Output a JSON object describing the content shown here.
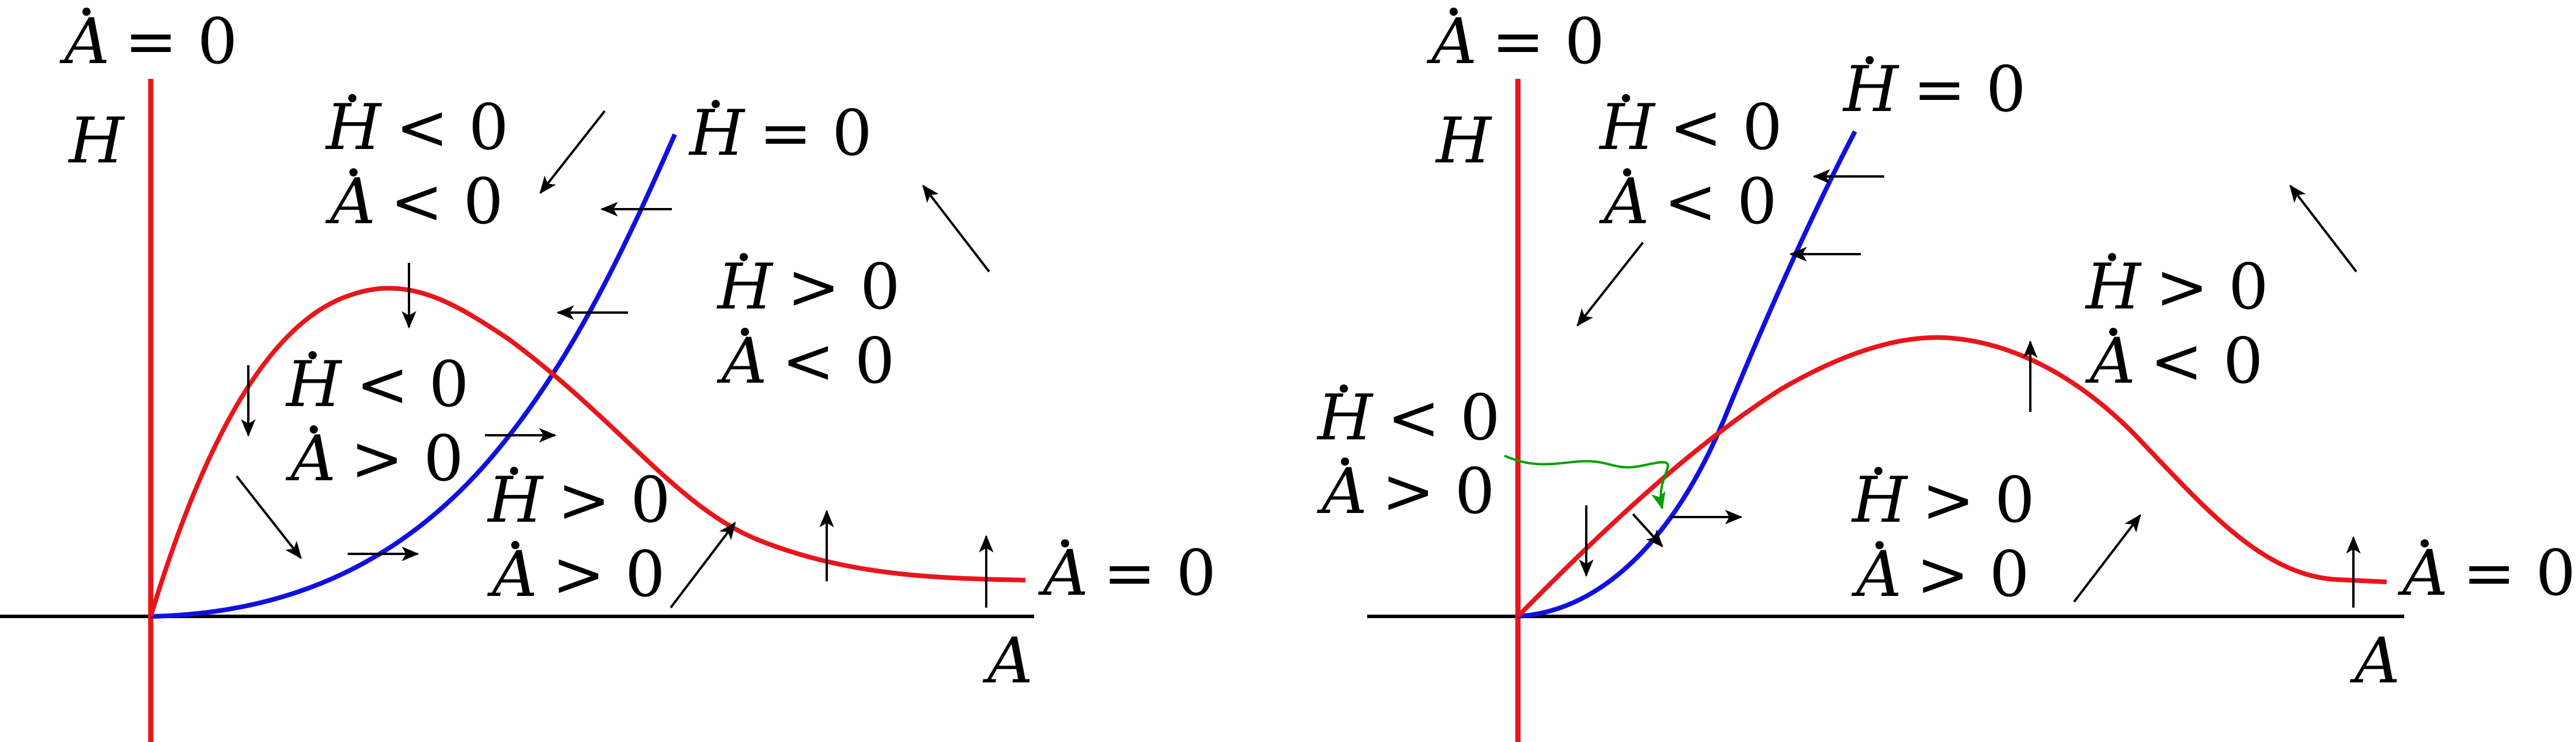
{
  "colors": {
    "nullcline_adot": "#e8161b",
    "nullcline_hdot": "#1010e0",
    "axis": "#000000",
    "flow_arrow": "#000000",
    "trajectory": "#00a000"
  },
  "panels": [
    {
      "axis_x_label": "A",
      "axis_y_label": "H",
      "adot_top_label": {
        "lhs": "A",
        "rhs": "= 0"
      },
      "adot_right_label": {
        "lhs": "A",
        "rhs": "= 0"
      },
      "hdot_curve_label": {
        "lhs": "H",
        "rhs": "= 0"
      },
      "regions": [
        {
          "h_lhs": "H",
          "h_rhs": "< 0",
          "a_lhs": "A",
          "a_rhs": "< 0"
        },
        {
          "h_lhs": "H",
          "h_rhs": "> 0",
          "a_lhs": "A",
          "a_rhs": "< 0"
        },
        {
          "h_lhs": "H",
          "h_rhs": "< 0",
          "a_lhs": "A",
          "a_rhs": "> 0"
        },
        {
          "h_lhs": "H",
          "h_rhs": "> 0",
          "a_lhs": "A",
          "a_rhs": "> 0"
        }
      ]
    },
    {
      "axis_x_label": "A",
      "axis_y_label": "H",
      "adot_top_label": {
        "lhs": "A",
        "rhs": "= 0"
      },
      "adot_right_label": {
        "lhs": "A",
        "rhs": "= 0"
      },
      "hdot_curve_label": {
        "lhs": "H",
        "rhs": "= 0"
      },
      "regions": [
        {
          "h_lhs": "H",
          "h_rhs": "< 0",
          "a_lhs": "A",
          "a_rhs": "< 0"
        },
        {
          "h_lhs": "H",
          "h_rhs": "> 0",
          "a_lhs": "A",
          "a_rhs": "< 0"
        },
        {
          "h_lhs": "H",
          "h_rhs": "< 0",
          "a_lhs": "A",
          "a_rhs": "> 0"
        },
        {
          "h_lhs": "H",
          "h_rhs": "> 0",
          "a_lhs": "A",
          "a_rhs": "> 0"
        }
      ]
    }
  ]
}
